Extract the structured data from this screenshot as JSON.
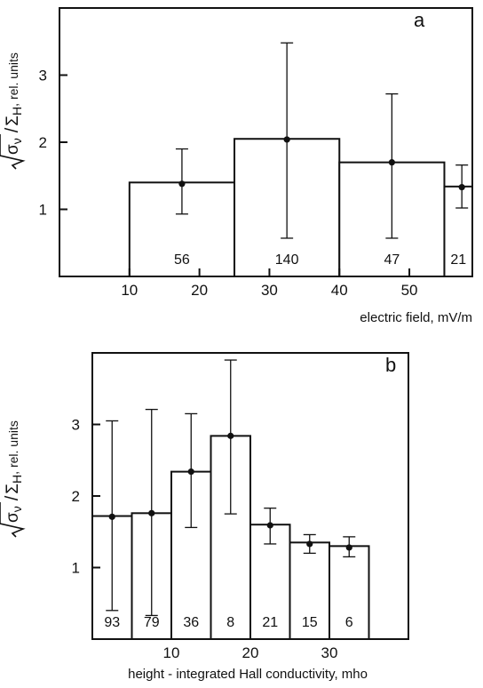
{
  "chart_data": [
    {
      "type": "bar",
      "panel_label": "a",
      "ylabel_math": {
        "num": "σ",
        "num_sub": "ν",
        "den": "Σ",
        "den_sub": "H",
        "suffix": ", rel. units"
      },
      "xlabel": "electric field, mV/m",
      "xlim": [
        0,
        59
      ],
      "ylim": [
        0,
        4
      ],
      "x_ticks": [
        10,
        20,
        30,
        40,
        50
      ],
      "y_ticks": [
        1,
        2,
        3
      ],
      "grid": false,
      "legend": "none",
      "bars": [
        {
          "x0": 10,
          "x1": 25,
          "value": 1.4,
          "point_x": 17.5,
          "point_y": 1.38,
          "err_low": 0.93,
          "err_high": 1.9,
          "count": "56"
        },
        {
          "x0": 25,
          "x1": 40,
          "value": 2.05,
          "point_x": 32.5,
          "point_y": 2.04,
          "err_low": 0.57,
          "err_high": 3.48,
          "count": "140"
        },
        {
          "x0": 40,
          "x1": 55,
          "value": 1.7,
          "point_x": 47.5,
          "point_y": 1.7,
          "err_low": 0.57,
          "err_high": 2.72,
          "count": "47"
        },
        {
          "x0": 55,
          "x1": 59,
          "value": 1.34,
          "point_x": 57.5,
          "point_y": 1.33,
          "err_low": 1.02,
          "err_high": 1.66,
          "count": "21"
        }
      ]
    },
    {
      "type": "bar",
      "panel_label": "b",
      "ylabel_math": {
        "num": "σ",
        "num_sub": "ν",
        "den": "Σ",
        "den_sub": "H",
        "suffix": ", rel. units"
      },
      "xlabel": "height - integrated Hall conductivity, mho",
      "xlim": [
        0,
        40
      ],
      "ylim": [
        0,
        4
      ],
      "x_ticks": [
        10,
        20,
        30
      ],
      "y_ticks": [
        1,
        2,
        3
      ],
      "grid": false,
      "legend": "none",
      "bars": [
        {
          "x0": 0,
          "x1": 5,
          "value": 1.72,
          "point_x": 2.5,
          "point_y": 1.71,
          "err_low": 0.4,
          "err_high": 3.05,
          "count": "93"
        },
        {
          "x0": 5,
          "x1": 10,
          "value": 1.76,
          "point_x": 7.5,
          "point_y": 1.76,
          "err_low": 0.33,
          "err_high": 3.21,
          "count": "79"
        },
        {
          "x0": 10,
          "x1": 15,
          "value": 2.34,
          "point_x": 12.5,
          "point_y": 2.34,
          "err_low": 1.56,
          "err_high": 3.15,
          "count": "36"
        },
        {
          "x0": 15,
          "x1": 20,
          "value": 2.84,
          "point_x": 17.5,
          "point_y": 2.84,
          "err_low": 1.75,
          "err_high": 3.9,
          "count": "8"
        },
        {
          "x0": 20,
          "x1": 25,
          "value": 1.6,
          "point_x": 22.5,
          "point_y": 1.59,
          "err_low": 1.33,
          "err_high": 1.83,
          "count": "21"
        },
        {
          "x0": 25,
          "x1": 30,
          "value": 1.35,
          "point_x": 27.5,
          "point_y": 1.33,
          "err_low": 1.2,
          "err_high": 1.46,
          "count": "15"
        },
        {
          "x0": 30,
          "x1": 35,
          "value": 1.3,
          "point_x": 32.5,
          "point_y": 1.28,
          "err_low": 1.15,
          "err_high": 1.43,
          "count": "6"
        }
      ]
    }
  ]
}
